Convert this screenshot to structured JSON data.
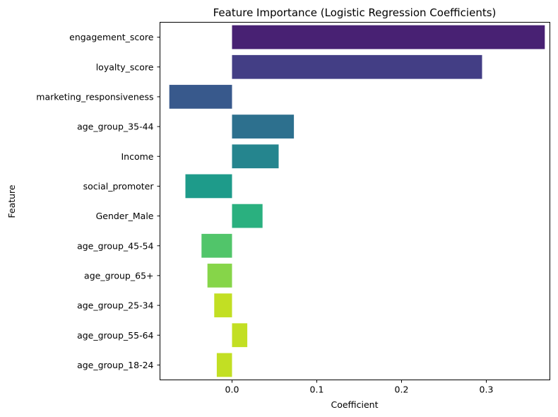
{
  "chart_data": {
    "type": "bar",
    "orientation": "horizontal",
    "title": "Feature Importance (Logistic Regression Coefficients)",
    "xlabel": "Coefficient",
    "ylabel": "Feature",
    "xlim": [
      -0.085,
      0.375
    ],
    "xticks": [
      0.0,
      0.1,
      0.2,
      0.3
    ],
    "xtick_labels": [
      "0.0",
      "0.1",
      "0.2",
      "0.3"
    ],
    "grid": false,
    "categories": [
      "engagement_score",
      "loyalty_score",
      "marketing_responsiveness",
      "age_group_35-44",
      "Income",
      "social_promoter",
      "Gender_Male",
      "age_group_45-54",
      "age_group_65+",
      "age_group_25-34",
      "age_group_55-64",
      "age_group_18-24"
    ],
    "values": [
      0.369,
      0.295,
      -0.074,
      0.073,
      0.055,
      -0.055,
      0.036,
      -0.036,
      -0.029,
      -0.021,
      0.018,
      -0.018
    ],
    "colors": [
      "#482173",
      "#433e85",
      "#38598c",
      "#2d708e",
      "#25858e",
      "#1e9b8a",
      "#2ab07f",
      "#51c56a",
      "#86d549",
      "#c2df23",
      "#c2df23",
      "#c2df23"
    ],
    "palette": "viridis"
  }
}
